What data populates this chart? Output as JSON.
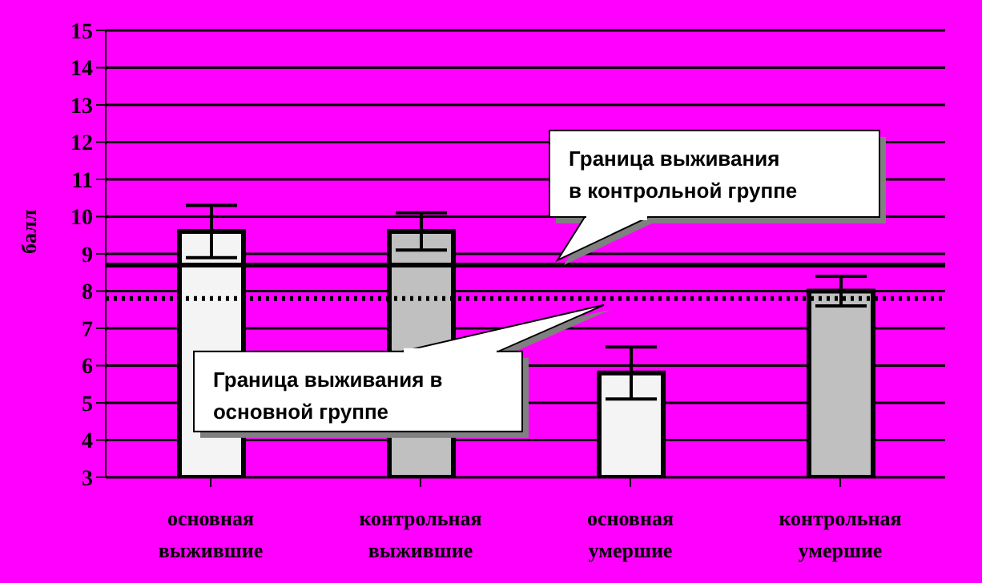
{
  "chart_data": {
    "type": "bar",
    "ylabel": "балл",
    "categories": [
      "основная выжившие",
      "контрольная выжившие",
      "основная умершие",
      "контрольная умершие"
    ],
    "values": [
      9.6,
      9.6,
      5.8,
      8.0
    ],
    "colors": [
      "#f4f4f4",
      "#c0c0c0",
      "#f4f4f4",
      "#c0c0c0"
    ],
    "errors": [
      [
        8.9,
        10.3
      ],
      [
        9.1,
        10.1
      ],
      [
        5.1,
        6.5
      ],
      [
        7.6,
        8.4
      ]
    ],
    "ylim": [
      3,
      15
    ],
    "yticks": [
      3,
      4,
      5,
      6,
      7,
      8,
      9,
      10,
      11,
      12,
      13,
      14,
      15
    ],
    "grid": "y",
    "ref_lines": [
      {
        "axis": "y",
        "value": 8.7,
        "label": "Граница выживания\nв контрольной группе",
        "color": "#000000",
        "line_style": "solid"
      },
      {
        "axis": "y",
        "value": 7.8,
        "label": "Граница выживания в\nосновной группе",
        "color": "#000000",
        "line_style": "dotted"
      }
    ]
  }
}
